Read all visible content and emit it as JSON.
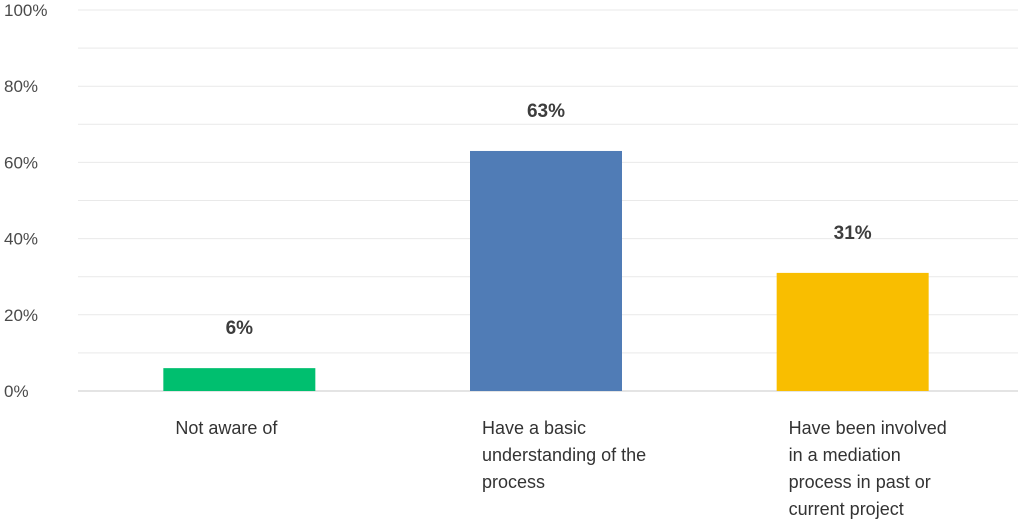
{
  "chart_data": {
    "type": "bar",
    "categories": [
      [
        "Not aware of"
      ],
      [
        "Have a basic",
        "understanding of the",
        "process"
      ],
      [
        "Have been involved",
        "in a mediation",
        "process in past or",
        "current project"
      ]
    ],
    "values": [
      6,
      63,
      31
    ],
    "value_labels": [
      "6%",
      "63%",
      "31%"
    ],
    "colors": [
      "#00bf6f",
      "#507cb6",
      "#f9be00"
    ],
    "ylim": [
      0,
      100
    ],
    "y_ticks": [
      0,
      20,
      40,
      60,
      80,
      100
    ],
    "y_tick_labels": [
      "0%",
      "20%",
      "40%",
      "60%",
      "80%",
      "100%"
    ],
    "grid": true,
    "title": "",
    "xlabel": "",
    "ylabel": ""
  }
}
